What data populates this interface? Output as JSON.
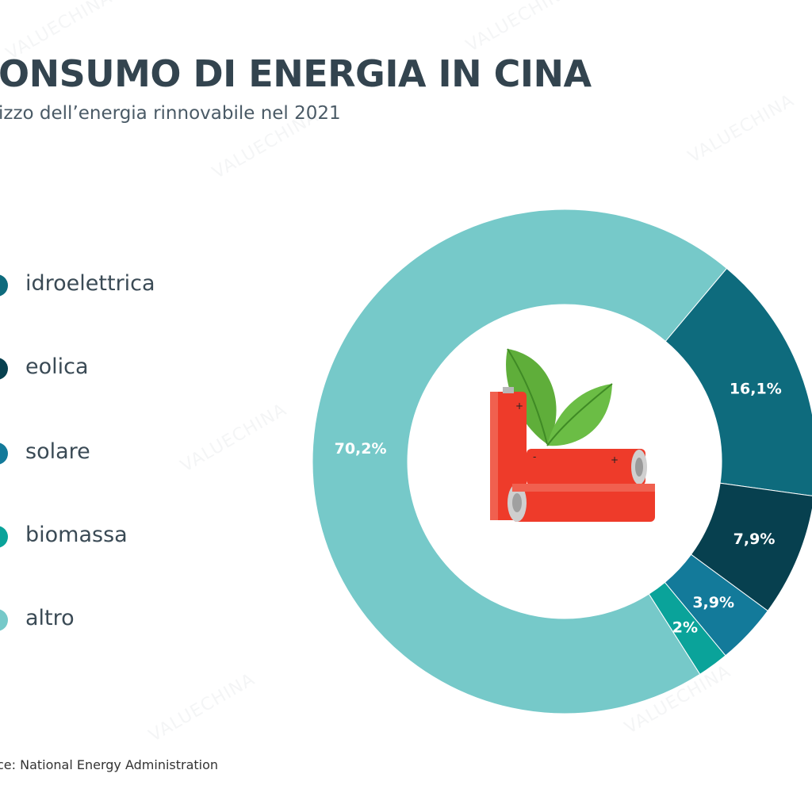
{
  "title": "ONSUMO DI ENERGIA IN CINA",
  "subtitle": "izzo dell’energia rinnovabile nel 2021",
  "source": "ce: National Energy Administration",
  "watermark": "VALUECHINA",
  "colors": {
    "idroelettrica": "#1c7a8a",
    "eolica": "#0c4a5a",
    "solare": "#137a9a",
    "biomassa": "#0aa39a",
    "altro": "#76c9c9"
  },
  "legend": [
    {
      "label": "idroelettrica",
      "color": "#0e6b7d"
    },
    {
      "label": "eolica",
      "color": "#07404f"
    },
    {
      "label": "solare",
      "color": "#137a9a"
    },
    {
      "label": "biomassa",
      "color": "#0aa39a"
    },
    {
      "label": "altro",
      "color": "#76c9c9"
    }
  ],
  "center_icon": "batteries-with-leaves-icon",
  "chart_data": {
    "type": "pie",
    "title": "",
    "categories": [
      "idroelettrica",
      "eolica",
      "solare",
      "biomassa",
      "altro"
    ],
    "values": [
      16.1,
      7.9,
      3.9,
      2.0,
      70.2
    ],
    "labels": [
      "16,1%",
      "7,9%",
      "3,9%",
      "2%",
      "70,2%"
    ],
    "colors": [
      "#0e6b7d",
      "#07404f",
      "#137a9a",
      "#0aa39a",
      "#76c9c9"
    ],
    "donut": true
  }
}
